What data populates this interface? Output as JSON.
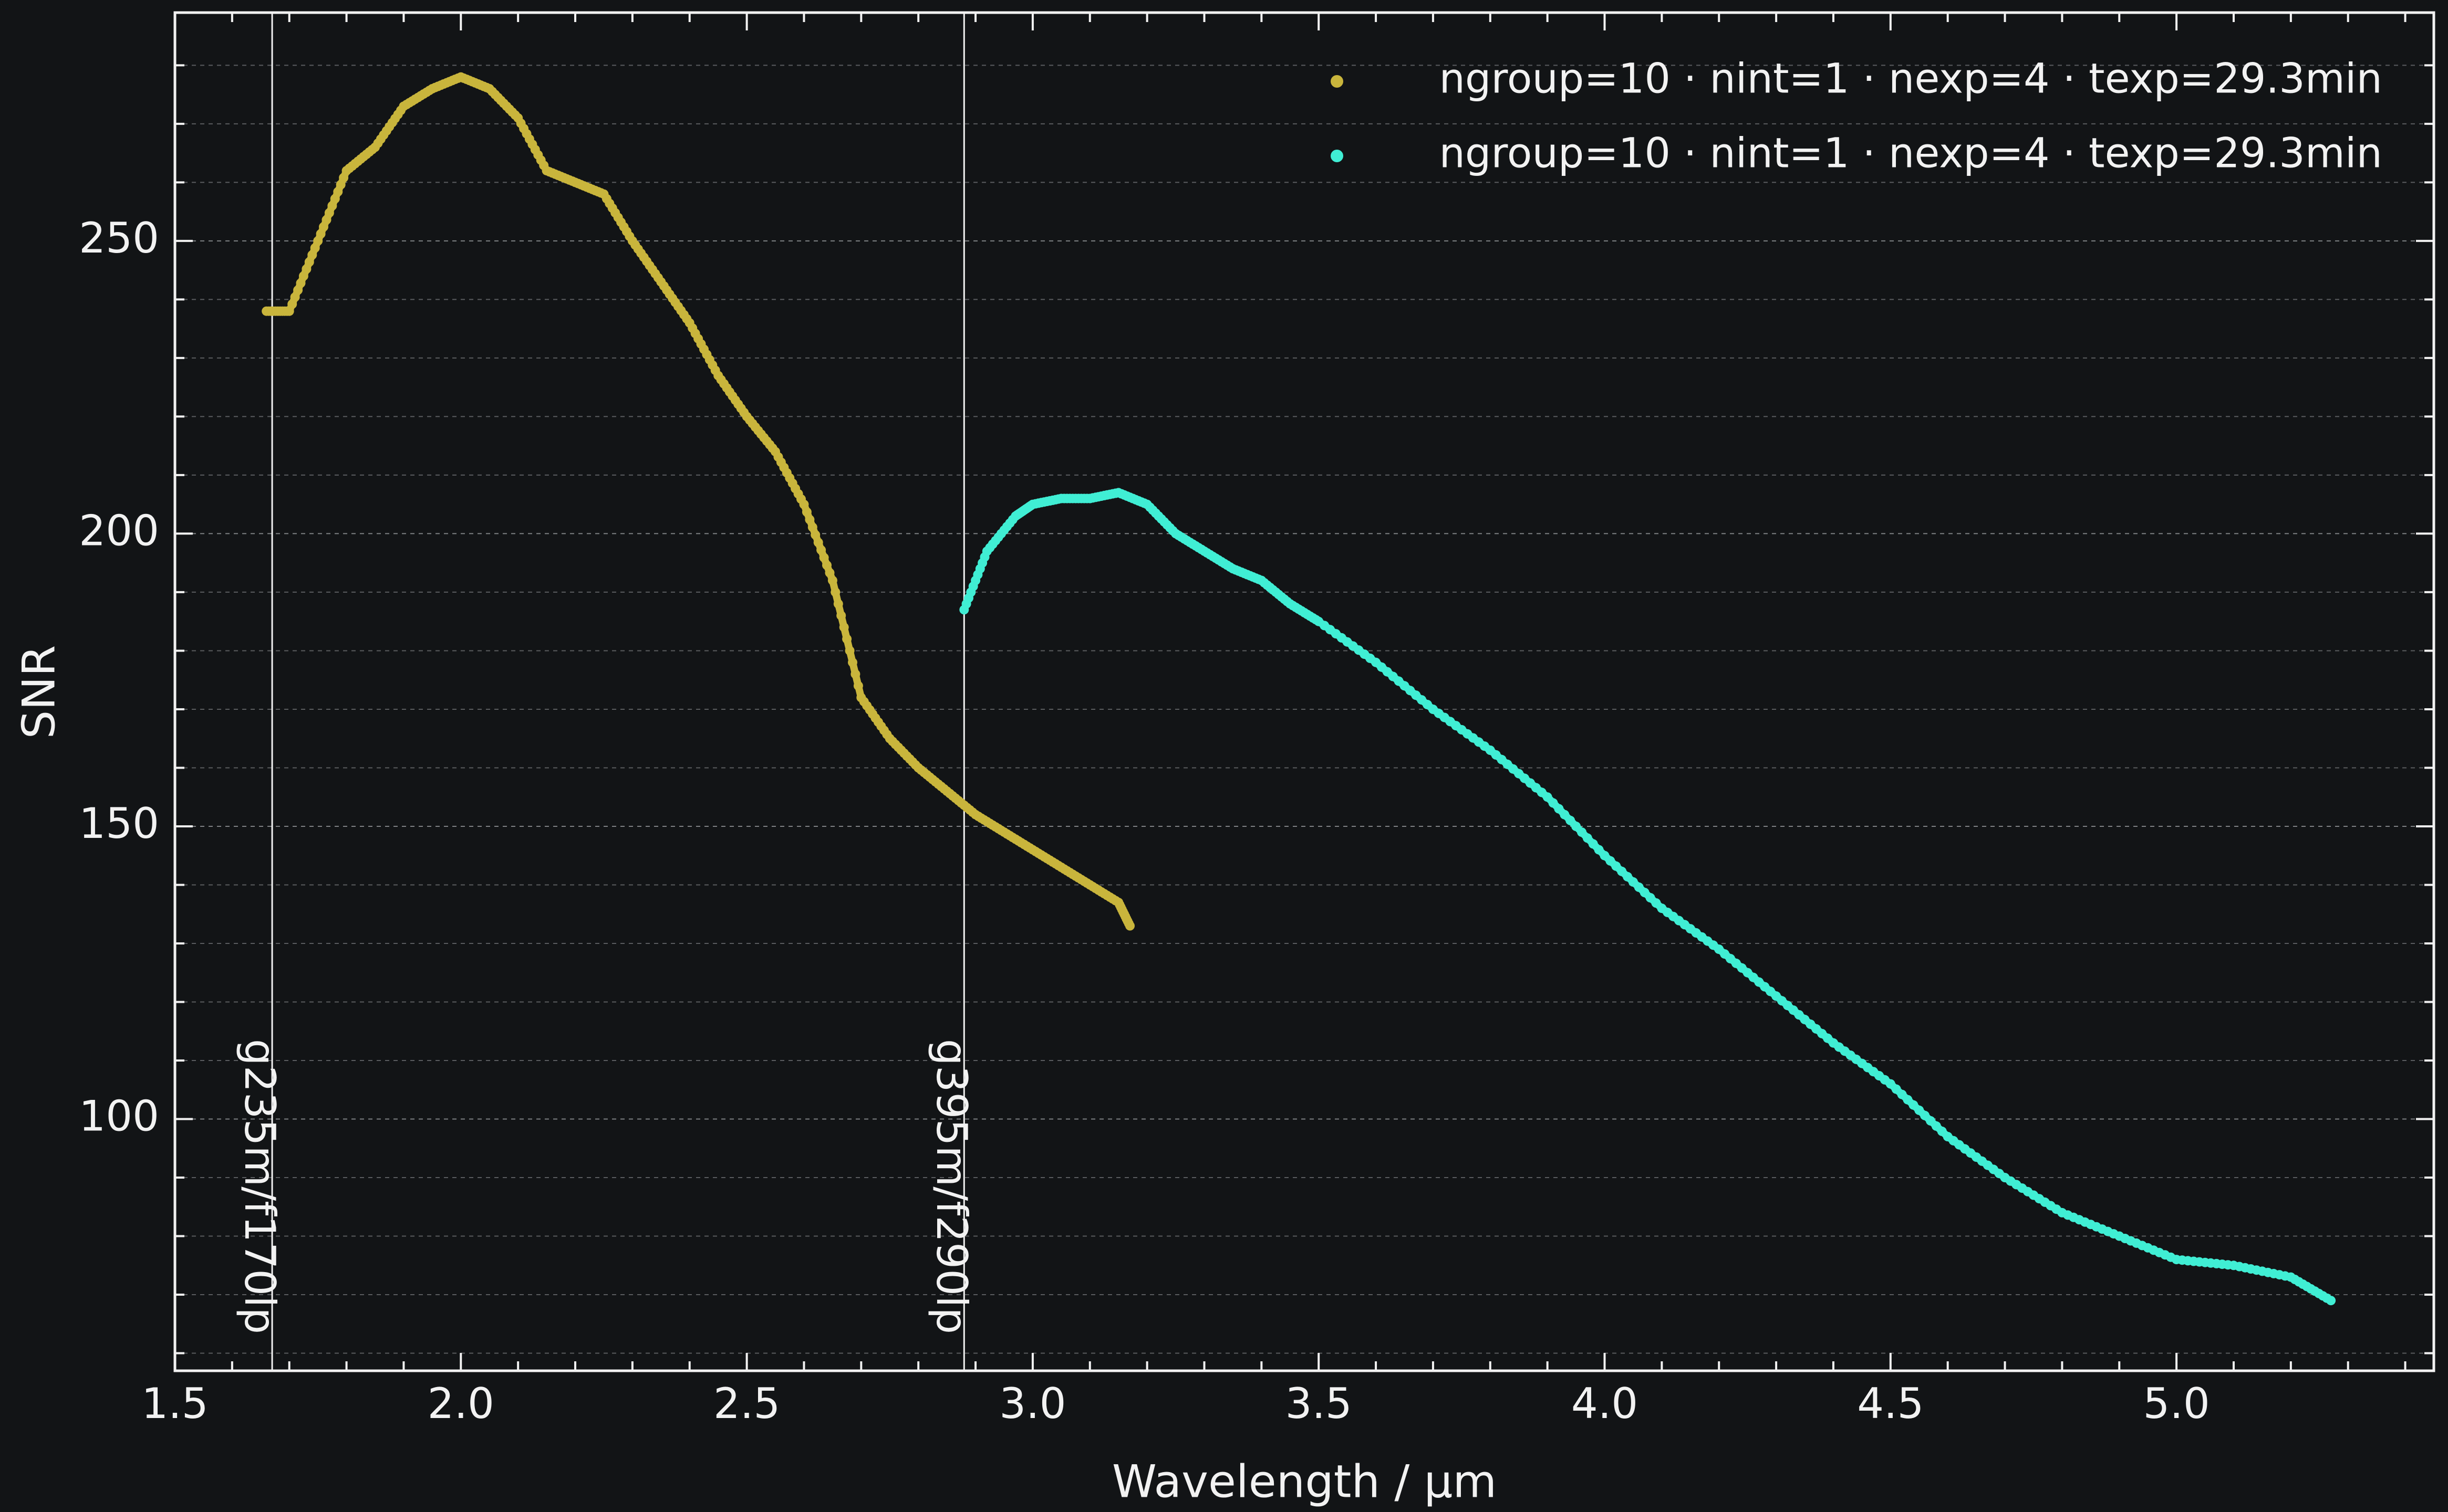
{
  "chart_data": {
    "type": "scatter",
    "title": "",
    "xlabel": "Wavelength / µm",
    "ylabel": "SNR",
    "xlim": [
      1.5,
      5.45
    ],
    "ylim": [
      57,
      289
    ],
    "x_ticks": [
      "1.5",
      "2.0",
      "2.5",
      "3.0",
      "3.5",
      "4.0",
      "4.5",
      "5.0"
    ],
    "y_ticks": [
      "100",
      "150",
      "200",
      "250"
    ],
    "grid": "horizontal dashed",
    "legend_position": "top-right",
    "background": "#121416",
    "annotations": [
      {
        "text": "g235m/f170lp",
        "x": 1.67
      },
      {
        "text": "g395m/f290lp",
        "x": 2.88
      }
    ],
    "series": [
      {
        "name": "ngroup=10 · nint=1 · nexp=4 · texp=29.3min",
        "color": "#c9b53c",
        "x": [
          1.66,
          1.7,
          1.75,
          1.8,
          1.85,
          1.9,
          1.95,
          2.0,
          2.05,
          2.1,
          2.15,
          2.2,
          2.25,
          2.3,
          2.35,
          2.4,
          2.45,
          2.5,
          2.55,
          2.6,
          2.65,
          2.7,
          2.75,
          2.8,
          2.85,
          2.9,
          2.95,
          3.0,
          3.05,
          3.1,
          3.15,
          3.17
        ],
        "y": [
          238,
          238,
          250,
          262,
          266,
          273,
          276,
          278,
          276,
          271,
          262,
          260,
          258,
          250,
          243,
          236,
          227,
          220,
          214,
          205,
          192,
          172,
          165,
          160,
          156,
          152,
          149,
          146,
          143,
          140,
          137,
          133
        ]
      },
      {
        "name": "ngroup=10 · nint=1 · nexp=4 · texp=29.3min",
        "color": "#40eed4",
        "x": [
          2.88,
          2.92,
          2.97,
          3.0,
          3.05,
          3.1,
          3.15,
          3.2,
          3.25,
          3.3,
          3.35,
          3.4,
          3.45,
          3.5,
          3.6,
          3.7,
          3.8,
          3.9,
          4.0,
          4.1,
          4.2,
          4.3,
          4.4,
          4.5,
          4.6,
          4.7,
          4.8,
          4.9,
          5.0,
          5.1,
          5.2,
          5.27
        ],
        "y": [
          187,
          197,
          203,
          205,
          206,
          206,
          207,
          205,
          200,
          197,
          194,
          192,
          188,
          185,
          178,
          170,
          163,
          155,
          145,
          136,
          129,
          121,
          113,
          106,
          97,
          90,
          84,
          80,
          76,
          75,
          73,
          69
        ]
      }
    ]
  }
}
